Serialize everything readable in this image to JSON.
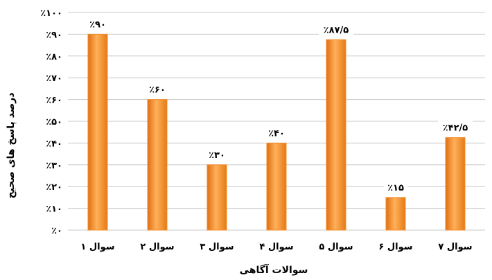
{
  "chart_data": {
    "type": "bar",
    "xlabel": "سوالات آگاهی",
    "ylabel": "درصد پاسخ های صحیح",
    "ylim": [
      0,
      100
    ],
    "grid": true,
    "bar_color": "#f28c28",
    "categories": [
      "سوال ۱",
      "سوال ۲",
      "سوال ۳",
      "سوال ۴",
      "سوال ۵",
      "سوال ۶",
      "سوال ۷"
    ],
    "values": [
      90,
      60,
      30,
      40,
      87.5,
      15,
      42.5
    ],
    "data_labels": [
      "٪۹۰",
      "٪۶۰",
      "٪۳۰",
      "٪۴۰",
      "٪۸۷/۵",
      "٪۱۵",
      "٪۴۲/۵"
    ],
    "y_ticks": [
      "٪۰",
      "٪۱۰",
      "٪۲۰",
      "٪۳۰",
      "٪۴۰",
      "٪۵۰",
      "٪۶۰",
      "٪۷۰",
      "٪۸۰",
      "٪۹۰",
      "٪۱۰۰"
    ]
  }
}
